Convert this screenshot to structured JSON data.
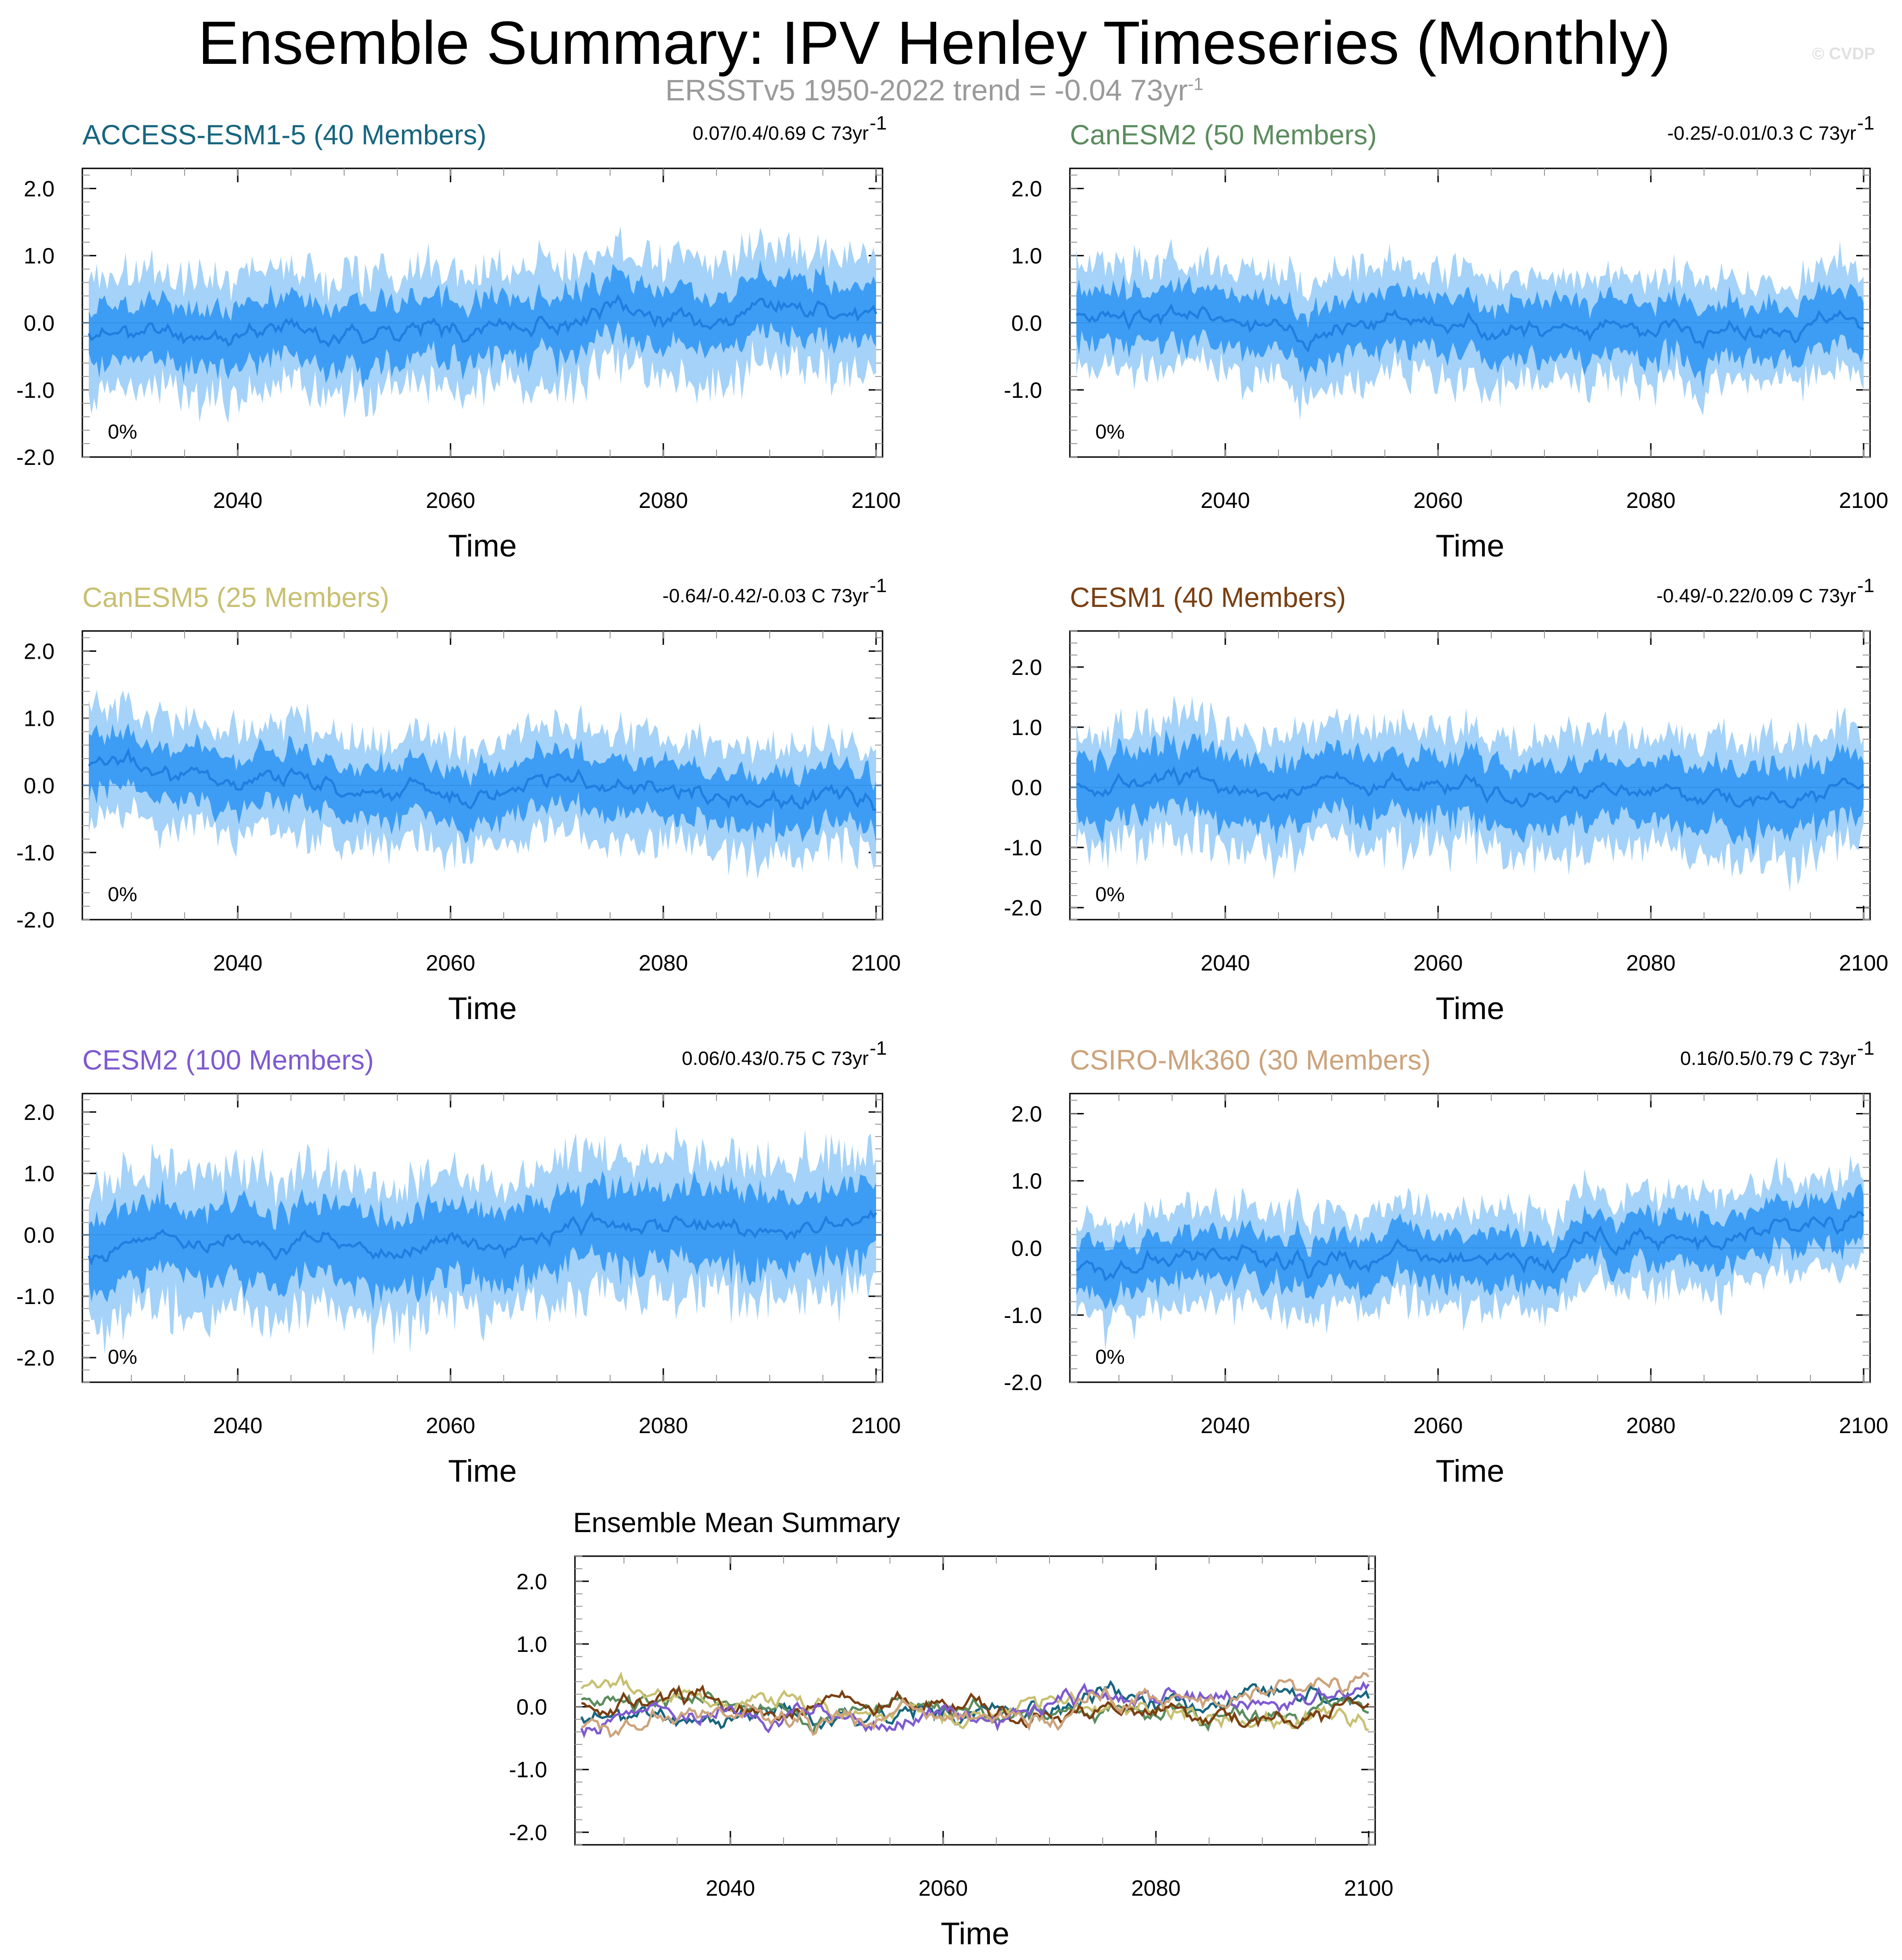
{
  "header": {
    "title": "Ensemble Summary: IPV Henley Timeseries (Monthly)",
    "subtitle_main": "ERSSTv5 1950-2022 trend = -0.04 73yr",
    "subtitle_exp": "-1",
    "watermark": "© CVDP"
  },
  "chart_data": [
    {
      "type": "area",
      "id": "access",
      "title": "ACCESS-ESM1-5 (40 Members)",
      "title_color": "#17657f",
      "stat": "0.07/0.4/0.69 C 73yr",
      "stat_exp": "-1",
      "pct": "0%",
      "xlabel": "Time",
      "xlim": [
        2026,
        2100
      ],
      "ylim": [
        -2.0,
        2.3
      ],
      "xticks": [
        "2040",
        "2060",
        "2080",
        "2100"
      ],
      "yticks": [
        "2.0",
        "1.0",
        "0.0",
        "-1.0",
        "-2.0"
      ],
      "mean_trend": 0.4,
      "seed": 11,
      "inner_spread": 0.55,
      "outer_spread": 1.05
    },
    {
      "type": "area",
      "id": "canesm2",
      "title": "CanESM2 (50 Members)",
      "title_color": "#5b8c5e",
      "stat": "-0.25/-0.01/0.3 C 73yr",
      "stat_exp": "-1",
      "pct": "0%",
      "xlabel": "Time",
      "xlim": [
        2026,
        2100
      ],
      "ylim": [
        -2.0,
        2.3
      ],
      "xticks": [
        "2040",
        "2060",
        "2080",
        "2100"
      ],
      "yticks": [
        "2.0",
        "1.0",
        "0.0",
        "-1.0"
      ],
      "mean_trend": -0.01,
      "seed": 23,
      "inner_spread": 0.5,
      "outer_spread": 0.95
    },
    {
      "type": "area",
      "id": "canesm5",
      "title": "CanESM5 (25 Members)",
      "title_color": "#c8c071",
      "stat": "-0.64/-0.42/-0.03 C 73yr",
      "stat_exp": "-1",
      "pct": "0%",
      "xlabel": "Time",
      "xlim": [
        2026,
        2100
      ],
      "ylim": [
        -2.0,
        2.3
      ],
      "xticks": [
        "2040",
        "2060",
        "2080",
        "2100"
      ],
      "yticks": [
        "2.0",
        "1.0",
        "0.0",
        "-1.0",
        "-2.0"
      ],
      "mean_trend": -0.42,
      "seed": 37,
      "inner_spread": 0.5,
      "outer_spread": 0.95
    },
    {
      "type": "area",
      "id": "cesm1",
      "title": "CESM1 (40 Members)",
      "title_color": "#7a3f12",
      "stat": "-0.49/-0.22/0.09 C 73yr",
      "stat_exp": "-1",
      "pct": "0%",
      "xlabel": "Time",
      "xlim": [
        2026,
        2100
      ],
      "ylim": [
        -2.2,
        2.6
      ],
      "xticks": [
        "2040",
        "2060",
        "2080",
        "2100"
      ],
      "yticks": [
        "2.0",
        "1.0",
        "0.0",
        "-1.0",
        "-2.0"
      ],
      "mean_trend": -0.22,
      "seed": 53,
      "inner_spread": 0.65,
      "outer_spread": 1.15
    },
    {
      "type": "area",
      "id": "cesm2",
      "title": "CESM2 (100 Members)",
      "title_color": "#7e5ad0",
      "stat": "0.06/0.43/0.75 C 73yr",
      "stat_exp": "-1",
      "pct": "0%",
      "xlabel": "Time",
      "xlim": [
        2026,
        2100
      ],
      "ylim": [
        -2.4,
        2.3
      ],
      "xticks": [
        "2040",
        "2060",
        "2080",
        "2100"
      ],
      "yticks": [
        "2.0",
        "1.0",
        "0.0",
        "-1.0",
        "-2.0"
      ],
      "mean_trend": 0.43,
      "seed": 71,
      "inner_spread": 0.75,
      "outer_spread": 1.35
    },
    {
      "type": "area",
      "id": "csiro",
      "title": "CSIRO-Mk360 (30 Members)",
      "title_color": "#cca37c",
      "stat": "0.16/0.5/0.79 C 73yr",
      "stat_exp": "-1",
      "pct": "0%",
      "xlabel": "Time",
      "xlim": [
        2026,
        2100
      ],
      "ylim": [
        -2.0,
        2.3
      ],
      "xticks": [
        "2040",
        "2060",
        "2080",
        "2100"
      ],
      "yticks": [
        "2.0",
        "1.0",
        "0.0",
        "-1.0",
        "-2.0"
      ],
      "mean_trend": 0.5,
      "seed": 89,
      "inner_spread": 0.45,
      "outer_spread": 0.85
    },
    {
      "type": "line",
      "id": "summary",
      "title": "Ensemble Mean Summary",
      "title_color": "#000000",
      "xlabel": "Time",
      "xlim": [
        2026,
        2100
      ],
      "ylim": [
        -2.2,
        2.4
      ],
      "xticks": [
        "2040",
        "2060",
        "2080",
        "2100"
      ],
      "yticks": [
        "2.0",
        "1.0",
        "0.0",
        "-1.0",
        "-2.0"
      ],
      "series": [
        {
          "name": "ACCESS-ESM1-5",
          "color": "#17657f",
          "trend": 0.4,
          "seed": 11
        },
        {
          "name": "CanESM2",
          "color": "#5b8c5e",
          "trend": -0.01,
          "seed": 23
        },
        {
          "name": "CanESM5",
          "color": "#c8c071",
          "trend": -0.42,
          "seed": 37
        },
        {
          "name": "CESM1",
          "color": "#7a3f12",
          "trend": -0.22,
          "seed": 53
        },
        {
          "name": "CESM2",
          "color": "#7e5ad0",
          "trend": 0.43,
          "seed": 71
        },
        {
          "name": "CSIRO-Mk360",
          "color": "#cca37c",
          "trend": 0.5,
          "seed": 89
        }
      ]
    }
  ]
}
